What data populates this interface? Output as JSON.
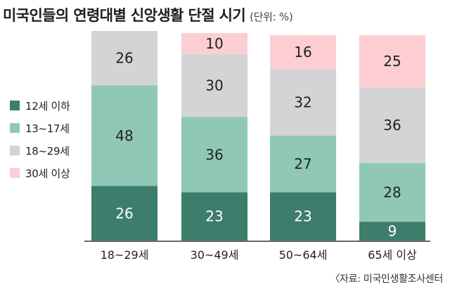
{
  "header": {
    "title": "미국인들의 연령대별 신앙생활 단절 시기",
    "unit": "(단위: %)"
  },
  "source": "〈자료: 미국인생활조사센터",
  "colors": {
    "12세 이하": "#3d7d6c",
    "13~17세": "#8fc8b6",
    "18~29세": "#d4d4d6",
    "30세 이상": "#fcced2"
  },
  "chart_data": {
    "type": "bar",
    "stacked": true,
    "categories": [
      "18~29세",
      "30~49세",
      "50~64세",
      "65세 이상"
    ],
    "series": [
      {
        "name": "12세 이하",
        "values": [
          26,
          23,
          23,
          9
        ]
      },
      {
        "name": "13~17세",
        "values": [
          48,
          36,
          27,
          28
        ]
      },
      {
        "name": "18~29세",
        "values": [
          26,
          30,
          32,
          36
        ]
      },
      {
        "name": "30세 이상",
        "values": [
          0,
          10,
          16,
          25
        ]
      }
    ],
    "ylim": [
      0,
      100
    ],
    "legend": "left",
    "grid": false
  }
}
